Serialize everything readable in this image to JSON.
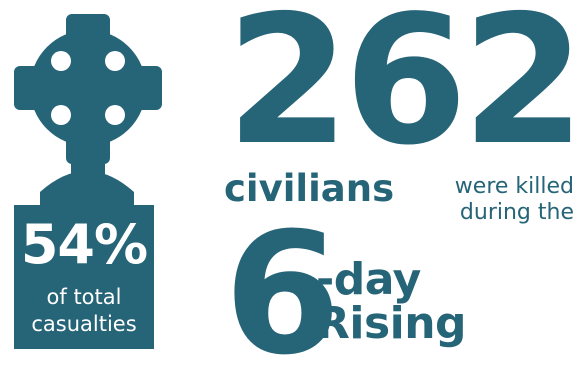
{
  "colors": {
    "accent": "#266477",
    "background": "#ffffff"
  },
  "headstone": {
    "icon": "celtic-cross-headstone-icon",
    "percent": "54%",
    "line1": "of total",
    "line2": "casualties"
  },
  "headline": {
    "number": "262",
    "subject": "civilians",
    "verb_line1": "were killed",
    "verb_line2": "during the",
    "duration_number": "6",
    "duration_rest": "-day Rising"
  }
}
